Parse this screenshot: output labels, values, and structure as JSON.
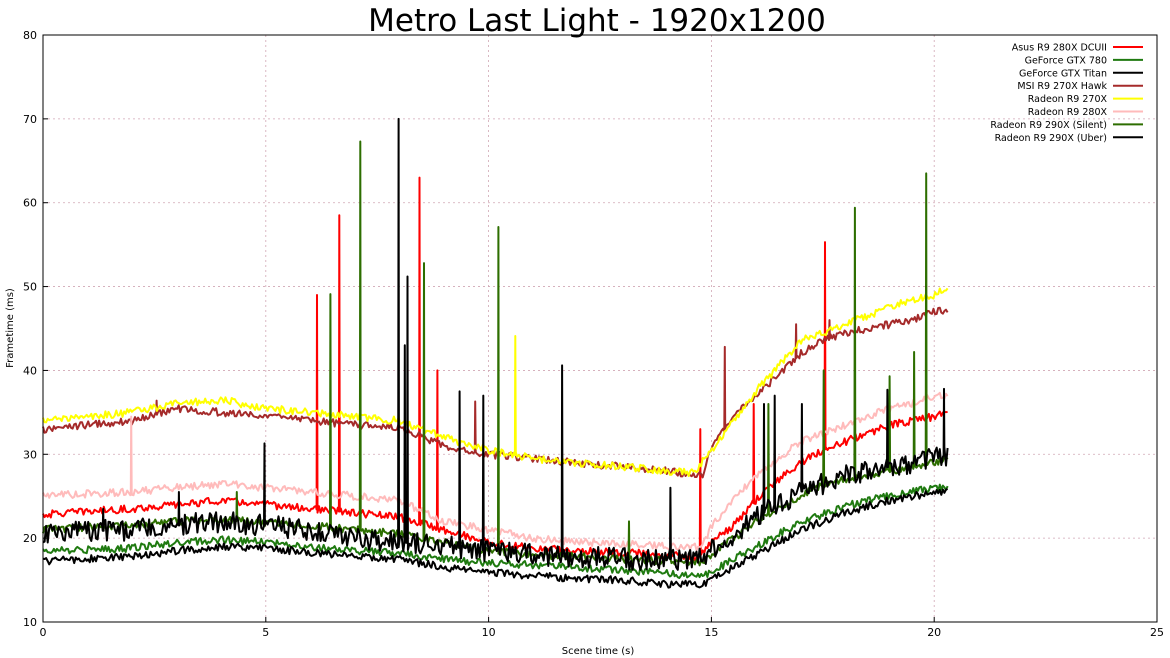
{
  "chart_data": {
    "type": "line",
    "title": "Metro Last Light - 1920x1200",
    "xlabel": "Scene time (s)",
    "ylabel": "Frametime (ms)",
    "xlim": [
      0,
      25
    ],
    "ylim": [
      10,
      80
    ],
    "xticks": [
      0,
      5,
      10,
      15,
      20,
      25
    ],
    "yticks": [
      10,
      20,
      30,
      40,
      50,
      60,
      70,
      80
    ],
    "grid": true,
    "legend_position": "top-right",
    "series": [
      {
        "name": "Asus R9 280X DCUII",
        "color": "#ff0000",
        "x": [
          0,
          1,
          2,
          3,
          4,
          5,
          6,
          7,
          8,
          9,
          10,
          11,
          12,
          13,
          14,
          14.7,
          15,
          15.5,
          16,
          16.5,
          17,
          17.5,
          18,
          18.5,
          19,
          19.5,
          20,
          20.3
        ],
        "y": [
          22.8,
          23.2,
          23.5,
          24.0,
          24.5,
          24.0,
          23.5,
          23.0,
          22.5,
          21.0,
          19.5,
          18.8,
          18.5,
          18.3,
          18.0,
          17.8,
          19.5,
          21.5,
          24.5,
          27.0,
          29.0,
          30.5,
          31.5,
          32.5,
          33.5,
          34.0,
          34.5,
          35.0
        ],
        "spikes": [
          [
            6.15,
            49
          ],
          [
            6.65,
            58.5
          ],
          [
            8.45,
            63
          ],
          [
            8.85,
            40
          ],
          [
            14.75,
            33
          ],
          [
            15.95,
            36
          ],
          [
            17.55,
            55.3
          ]
        ]
      },
      {
        "name": "GeForce GTX 780",
        "color": "#1f7a10",
        "x": [
          0,
          1,
          2,
          3,
          4,
          5,
          6,
          7,
          8,
          9,
          10,
          11,
          12,
          13,
          14,
          14.8,
          15,
          15.5,
          16,
          16.5,
          17,
          17.5,
          18,
          18.5,
          19,
          19.5,
          20,
          20.3
        ],
        "y": [
          18.5,
          18.6,
          18.8,
          19.5,
          19.8,
          19.5,
          19.0,
          18.5,
          18.2,
          17.5,
          17.0,
          16.8,
          16.5,
          16.2,
          15.8,
          15.5,
          16.0,
          17.5,
          19.0,
          20.5,
          21.8,
          22.8,
          23.8,
          24.5,
          25.0,
          25.5,
          26.0,
          26.0
        ],
        "spikes": []
      },
      {
        "name": "GeForce GTX Titan",
        "color": "#000000",
        "x": [
          0,
          1,
          2,
          3,
          4,
          5,
          6,
          7,
          8,
          9,
          10,
          11,
          12,
          13,
          14,
          14.8,
          15,
          15.5,
          16,
          16.5,
          17,
          17.5,
          18,
          18.5,
          19,
          19.5,
          20,
          20.3
        ],
        "y": [
          17.3,
          17.5,
          17.8,
          18.5,
          19.0,
          18.8,
          18.3,
          17.8,
          17.5,
          16.5,
          16.0,
          15.5,
          15.2,
          15.0,
          14.5,
          14.5,
          15.0,
          16.5,
          18.0,
          19.5,
          21.0,
          22.0,
          23.0,
          23.8,
          24.5,
          25.0,
          25.3,
          25.5
        ],
        "spikes": []
      },
      {
        "name": "MSI R9 270X Hawk",
        "color": "#a52a2a",
        "x": [
          0,
          1,
          2,
          3,
          4,
          5,
          6,
          7,
          8,
          9,
          10,
          11,
          12,
          13,
          14,
          14.8,
          15,
          15.5,
          16,
          16.5,
          17,
          17.5,
          18,
          18.5,
          19,
          19.5,
          20,
          20.3
        ],
        "y": [
          33.0,
          33.5,
          34.0,
          35.5,
          35.0,
          34.5,
          34.0,
          33.5,
          33.3,
          31.0,
          30.0,
          29.5,
          29.0,
          28.5,
          28.0,
          27.5,
          31.0,
          34.5,
          37.0,
          39.5,
          42.0,
          43.5,
          44.5,
          45.0,
          45.5,
          46.0,
          47.0,
          47.3
        ],
        "spikes": [
          [
            2.55,
            36.4
          ],
          [
            9.7,
            36.3
          ],
          [
            15.3,
            42.8
          ],
          [
            16.9,
            45.5
          ],
          [
            17.65,
            46
          ]
        ]
      },
      {
        "name": "Radeon R9 270X",
        "color": "#ffff00",
        "x": [
          0,
          1,
          2,
          3,
          4,
          5,
          6,
          7,
          8,
          9,
          10,
          11,
          12,
          13,
          14,
          14.6,
          15,
          15.5,
          16,
          16.5,
          17,
          17.5,
          18,
          18.5,
          19,
          19.5,
          20,
          20.3
        ],
        "y": [
          34.0,
          34.5,
          35.0,
          36.0,
          36.5,
          35.5,
          35.0,
          34.5,
          34.0,
          32.0,
          30.5,
          29.5,
          29.0,
          28.5,
          28.0,
          27.8,
          30.5,
          34.0,
          37.5,
          40.5,
          43.5,
          44.5,
          45.5,
          46.5,
          47.5,
          48.5,
          49.0,
          50.0
        ],
        "spikes": [
          [
            10.6,
            44.1
          ]
        ]
      },
      {
        "name": "Radeon R9 280X",
        "color": "#ffbbbb",
        "x": [
          0,
          1,
          2,
          3,
          4,
          5,
          6,
          7,
          8,
          9,
          10,
          11,
          12,
          13,
          14,
          14.8,
          15,
          15.5,
          16,
          16.5,
          17,
          17.5,
          18,
          18.5,
          19,
          19.5,
          20,
          20.3
        ],
        "y": [
          25.0,
          25.3,
          25.5,
          26.0,
          26.5,
          26.0,
          25.5,
          25.0,
          24.5,
          22.0,
          21.0,
          20.0,
          19.5,
          19.3,
          19.0,
          19.0,
          21.5,
          24.5,
          27.5,
          29.5,
          31.5,
          32.5,
          33.5,
          34.5,
          35.5,
          36.0,
          37.0,
          37.0
        ],
        "spikes": [
          [
            1.98,
            34.5
          ]
        ]
      },
      {
        "name": "Radeon R9 290X (Silent)",
        "color": "#2d6e00",
        "x": [
          0,
          1,
          2,
          3,
          4,
          5,
          6,
          7,
          8,
          9,
          10,
          11,
          12,
          13,
          14,
          14.8,
          15,
          15.5,
          16,
          16.5,
          17,
          17.5,
          18,
          18.5,
          19,
          19.5,
          20,
          20.3
        ],
        "y": [
          21.0,
          21.3,
          21.5,
          22.0,
          22.3,
          21.8,
          21.5,
          21.0,
          20.5,
          19.5,
          18.5,
          18.0,
          17.8,
          17.5,
          17.3,
          17.0,
          18.0,
          20.0,
          22.0,
          23.5,
          25.0,
          26.5,
          27.0,
          27.5,
          28.0,
          28.5,
          29.0,
          29.5
        ],
        "spikes": [
          [
            4.35,
            25.5
          ],
          [
            6.45,
            49.1
          ],
          [
            7.12,
            67.3
          ],
          [
            8.55,
            52.8
          ],
          [
            10.22,
            57.1
          ],
          [
            13.15,
            22.0
          ],
          [
            16.28,
            36.0
          ],
          [
            17.52,
            40.0
          ],
          [
            18.22,
            59.4
          ],
          [
            19.0,
            39.3
          ],
          [
            19.55,
            42.2
          ],
          [
            19.82,
            63.5
          ]
        ]
      },
      {
        "name": "Radeon R9 290X (Uber)",
        "color": "#000000",
        "x": [
          0,
          1,
          2,
          3,
          4,
          5,
          6,
          7,
          8,
          9,
          10,
          11,
          12,
          13,
          14,
          14.8,
          15,
          15.5,
          16,
          16.5,
          17,
          17.5,
          18,
          18.5,
          19,
          19.5,
          20,
          20.3
        ],
        "y": [
          20.5,
          20.8,
          21.0,
          21.5,
          22.0,
          21.5,
          21.0,
          20.0,
          19.5,
          19.0,
          18.5,
          18.0,
          17.8,
          17.5,
          17.5,
          17.5,
          18.5,
          20.5,
          22.5,
          24.0,
          25.5,
          26.5,
          27.5,
          28.0,
          28.5,
          29.0,
          29.5,
          30.0
        ],
        "spikes": [
          [
            1.35,
            23.5
          ],
          [
            3.05,
            25.5
          ],
          [
            4.97,
            31.3
          ],
          [
            7.98,
            70.0
          ],
          [
            8.18,
            51.2
          ],
          [
            8.12,
            43.0
          ],
          [
            9.35,
            37.5
          ],
          [
            9.88,
            37.0
          ],
          [
            11.65,
            40.6
          ],
          [
            14.08,
            26.0
          ],
          [
            16.42,
            37.0
          ],
          [
            16.18,
            36.0
          ],
          [
            17.03,
            36.0
          ],
          [
            18.95,
            37.7
          ],
          [
            20.22,
            37.8
          ]
        ]
      }
    ]
  }
}
